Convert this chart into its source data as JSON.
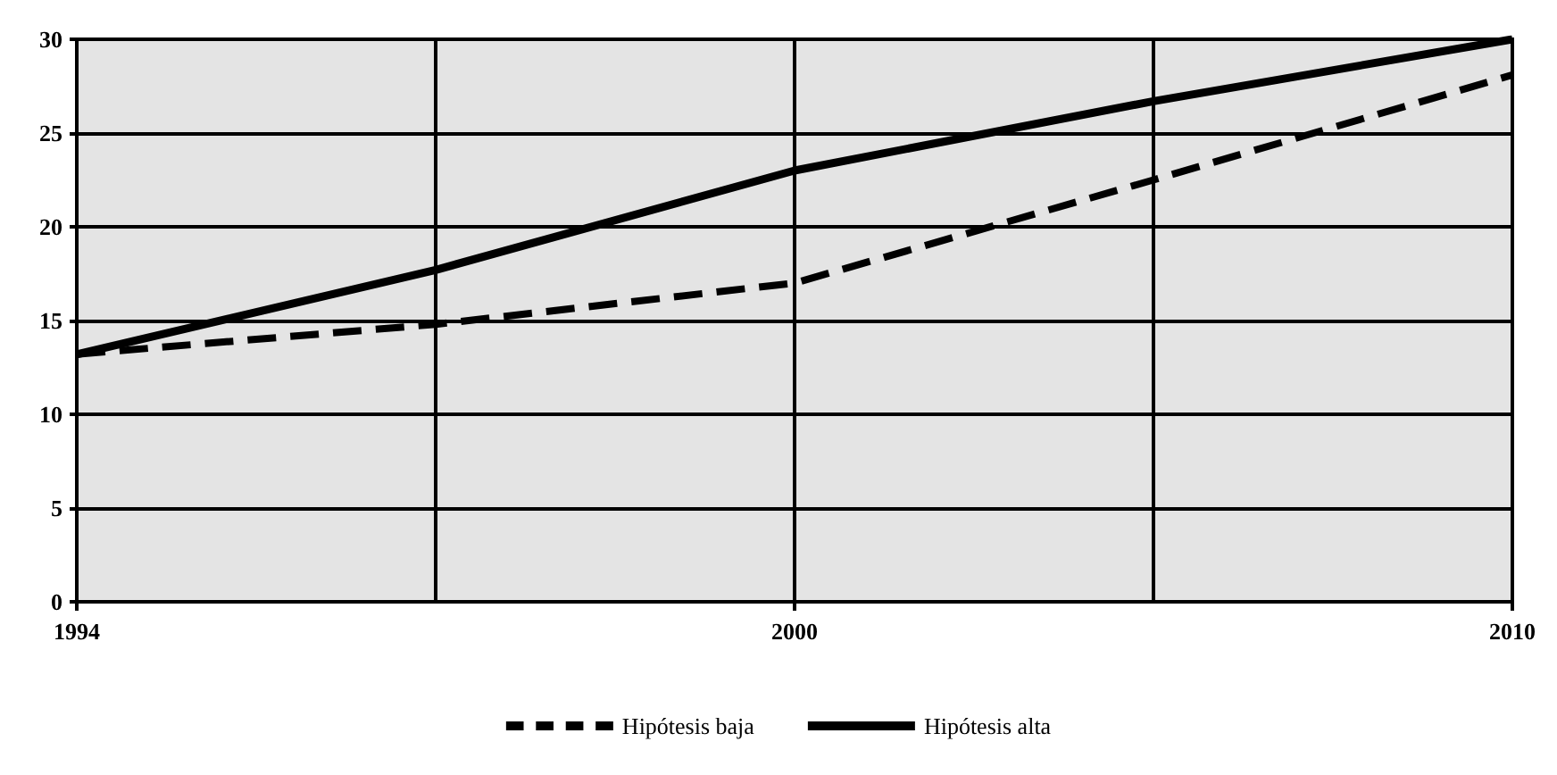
{
  "chart_data": {
    "type": "line",
    "categories": [
      "1994",
      null,
      "2000",
      null,
      "2010"
    ],
    "series": [
      {
        "name": "Hipótesis baja",
        "color": "#000000",
        "values": [
          13.2,
          14.8,
          17.0,
          22.5,
          28.1
        ],
        "line_style": "dashed"
      },
      {
        "name": "Hipótesis alta",
        "color": "#000000",
        "values": [
          13.2,
          17.7,
          23.0,
          26.7,
          30.0
        ],
        "line_style": "solid"
      }
    ],
    "ylim": [
      0,
      30
    ],
    "yticks": [
      0,
      5,
      10,
      15,
      20,
      25,
      30
    ],
    "grid": true,
    "legend": "bottom",
    "marker": "none"
  }
}
